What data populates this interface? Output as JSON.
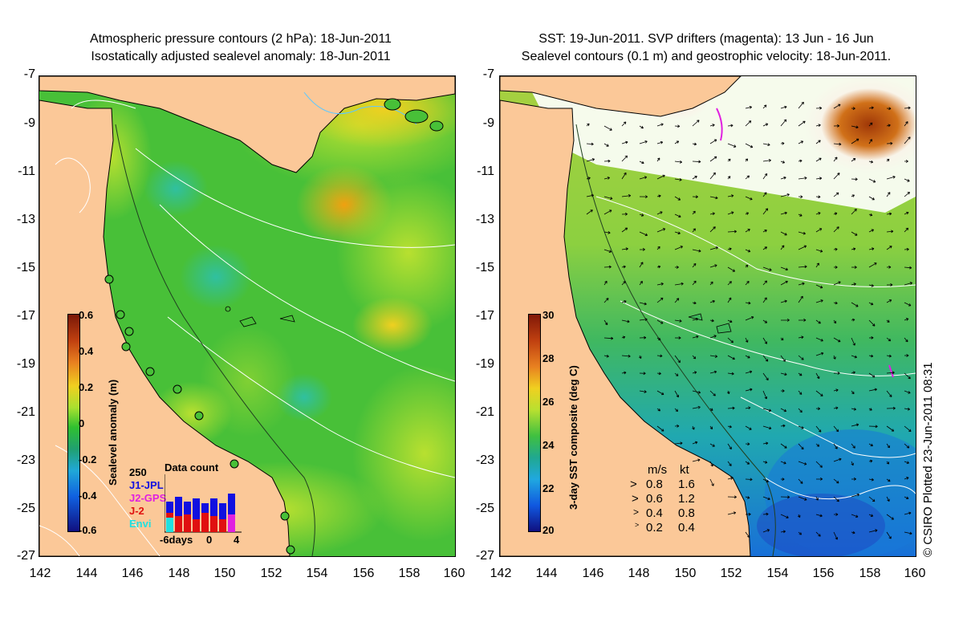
{
  "left_panel": {
    "title_line1": "Atmospheric pressure contours (2 hPa): 18-Jun-2011",
    "title_line2": "Isostatically adjusted sealevel anomaly: 18-Jun-2011",
    "colorbar_label": "Sealevel anomaly (m)",
    "colorbar_ticks": [
      "0.6",
      "0.4",
      "0.2",
      "0",
      "-0.2",
      "-0.4",
      "-0.6"
    ],
    "data_count": {
      "max_label": "250",
      "title": "Data count",
      "series": [
        {
          "name": "J1-JPL",
          "color": "#1010e0"
        },
        {
          "name": "J2-GPS",
          "color": "#e020e0"
        },
        {
          "name": "J-2",
          "color": "#e01010"
        },
        {
          "name": "Envi",
          "color": "#20e0e0"
        }
      ],
      "x_labels": [
        "-6days",
        "0",
        "4"
      ]
    }
  },
  "right_panel": {
    "title_line1": "SST: 19-Jun-2011. SVP drifters (magenta): 13 Jun - 16 Jun",
    "title_line2": "Sealevel contours (0.1 m) and geostrophic velocity: 18-Jun-2011.",
    "colorbar_label": "3-day SST composite (deg C)",
    "colorbar_ticks": [
      "30",
      "28",
      "26",
      "24",
      "22",
      "20"
    ],
    "velocity_legend": {
      "header_ms": "m/s",
      "header_kt": "kt",
      "rows": [
        {
          "ms": "0.8",
          "kt": "1.6"
        },
        {
          "ms": "0.6",
          "kt": "1.2"
        },
        {
          "ms": "0.4",
          "kt": "0.8"
        },
        {
          "ms": "0.2",
          "kt": "0.4"
        }
      ]
    }
  },
  "axes": {
    "y_ticks": [
      "-7",
      "-9",
      "-11",
      "-13",
      "-15",
      "-17",
      "-19",
      "-21",
      "-23",
      "-25",
      "-27"
    ],
    "x_ticks": [
      "142",
      "144",
      "146",
      "148",
      "150",
      "152",
      "154",
      "156",
      "158",
      "160"
    ]
  },
  "copyright": "© CSIRO Plotted 23-Jun-2011 08:31",
  "colors": {
    "land": "#fbc898",
    "sla_background": "#4cc43a",
    "sst_background": "#3fb85a"
  }
}
